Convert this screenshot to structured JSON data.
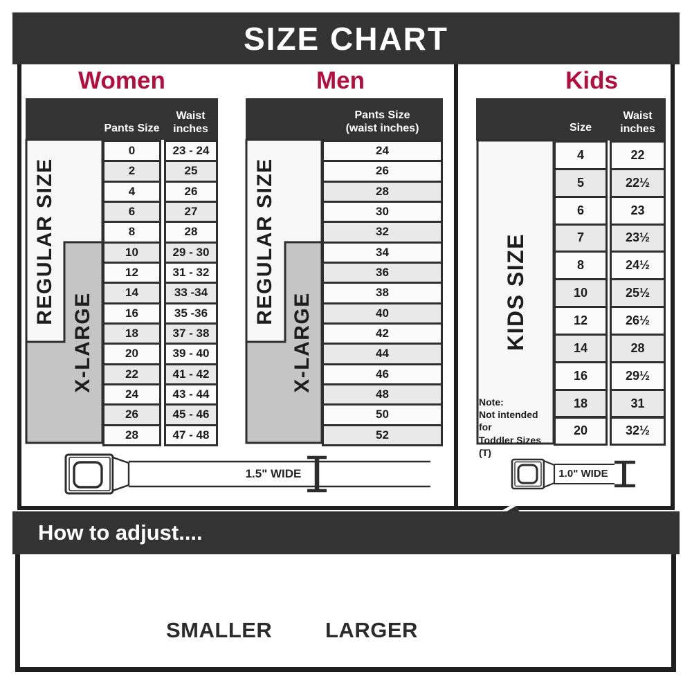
{
  "banner": {
    "title": "SIZE CHART"
  },
  "sections": {
    "women": {
      "title": "Women",
      "size_header": "Pants Size",
      "waist_header": "Waist\ninches",
      "regular_label": "REGULAR SIZE",
      "xlarge_label": "X-LARGE",
      "belt_width_label": "1.5\" WIDE",
      "rows": [
        {
          "size": "0",
          "waist": "23 - 24"
        },
        {
          "size": "2",
          "waist": "25"
        },
        {
          "size": "4",
          "waist": "26"
        },
        {
          "size": "6",
          "waist": "27"
        },
        {
          "size": "8",
          "waist": "28"
        },
        {
          "size": "10",
          "waist": "29 - 30"
        },
        {
          "size": "12",
          "waist": "31 - 32"
        },
        {
          "size": "14",
          "waist": "33 -34"
        },
        {
          "size": "16",
          "waist": "35 -36"
        },
        {
          "size": "18",
          "waist": "37 - 38"
        },
        {
          "size": "20",
          "waist": "39 - 40"
        },
        {
          "size": "22",
          "waist": "41 - 42"
        },
        {
          "size": "24",
          "waist": "43 - 44"
        },
        {
          "size": "26",
          "waist": "45 - 46"
        },
        {
          "size": "28",
          "waist": "47 - 48"
        }
      ]
    },
    "men": {
      "title": "Men",
      "size_header": "Pants Size\n(waist inches)",
      "regular_label": "REGULAR SIZE",
      "xlarge_label": "X-LARGE",
      "rows": [
        "24",
        "26",
        "28",
        "30",
        "32",
        "34",
        "36",
        "38",
        "40",
        "42",
        "44",
        "46",
        "48",
        "50",
        "52"
      ]
    },
    "kids": {
      "title": "Kids",
      "size_header": "Size",
      "waist_header": "Waist\ninches",
      "side_label": "KIDS SIZE",
      "note": "Note:\nNot intended for\nToddler Sizes (T)",
      "belt_width_label": "1.0\" WIDE",
      "rows": [
        {
          "size": "4",
          "waist": "22"
        },
        {
          "size": "5",
          "waist": "22½"
        },
        {
          "size": "6",
          "waist": "23"
        },
        {
          "size": "7",
          "waist": "23½"
        },
        {
          "size": "8",
          "waist": "24½"
        },
        {
          "size": "10",
          "waist": "25½"
        },
        {
          "size": "12",
          "waist": "26½"
        },
        {
          "size": "14",
          "waist": "28"
        },
        {
          "size": "16",
          "waist": "29½"
        },
        {
          "size": "18",
          "waist": "31"
        },
        {
          "size": "20",
          "waist": "32½"
        }
      ]
    }
  },
  "adjust": {
    "heading": "How to adjust....",
    "smaller_label": "SMALLER",
    "larger_label": "LARGER"
  },
  "colors": {
    "accent": "#b30e3e",
    "charcoal": "#333333",
    "row_shade": "#e9e9e9",
    "xlarge_gray": "#c5c5c5",
    "label_white": "#f8f8f8"
  },
  "chart_data": [
    {
      "type": "table",
      "title": "Women",
      "columns": [
        "Pants Size",
        "Waist inches"
      ],
      "rows": [
        [
          "0",
          "23 - 24"
        ],
        [
          "2",
          "25"
        ],
        [
          "4",
          "26"
        ],
        [
          "6",
          "27"
        ],
        [
          "8",
          "28"
        ],
        [
          "10",
          "29 - 30"
        ],
        [
          "12",
          "31 - 32"
        ],
        [
          "14",
          "33 -34"
        ],
        [
          "16",
          "35 -36"
        ],
        [
          "18",
          "37 - 38"
        ],
        [
          "20",
          "39 - 40"
        ],
        [
          "22",
          "41 - 42"
        ],
        [
          "24",
          "43 - 44"
        ],
        [
          "26",
          "45 - 46"
        ],
        [
          "28",
          "47 - 48"
        ]
      ],
      "row_groups": [
        {
          "label": "REGULAR SIZE",
          "covers_sizes": "0-18"
        },
        {
          "label": "X-LARGE",
          "covers_sizes": "10-28"
        }
      ],
      "belt_width": "1.5\" WIDE"
    },
    {
      "type": "table",
      "title": "Men",
      "columns": [
        "Pants Size (waist inches)"
      ],
      "rows": [
        [
          "24"
        ],
        [
          "26"
        ],
        [
          "28"
        ],
        [
          "30"
        ],
        [
          "32"
        ],
        [
          "34"
        ],
        [
          "36"
        ],
        [
          "38"
        ],
        [
          "40"
        ],
        [
          "42"
        ],
        [
          "44"
        ],
        [
          "46"
        ],
        [
          "48"
        ],
        [
          "50"
        ],
        [
          "52"
        ]
      ],
      "row_groups": [
        {
          "label": "REGULAR SIZE",
          "covers_sizes": "24-42"
        },
        {
          "label": "X-LARGE",
          "covers_sizes": "34-52"
        }
      ],
      "belt_width": "1.5\" WIDE"
    },
    {
      "type": "table",
      "title": "Kids",
      "columns": [
        "Size",
        "Waist inches"
      ],
      "rows": [
        [
          "4",
          "22"
        ],
        [
          "5",
          "22½"
        ],
        [
          "6",
          "23"
        ],
        [
          "7",
          "23½"
        ],
        [
          "8",
          "24½"
        ],
        [
          "10",
          "25½"
        ],
        [
          "12",
          "26½"
        ],
        [
          "14",
          "28"
        ],
        [
          "16",
          "29½"
        ],
        [
          "18",
          "31"
        ],
        [
          "20",
          "32½"
        ]
      ],
      "row_groups": [
        {
          "label": "KIDS SIZE",
          "covers_sizes": "4-20"
        }
      ],
      "note": "Not intended for Toddler Sizes (T)",
      "belt_width": "1.0\" WIDE"
    }
  ]
}
